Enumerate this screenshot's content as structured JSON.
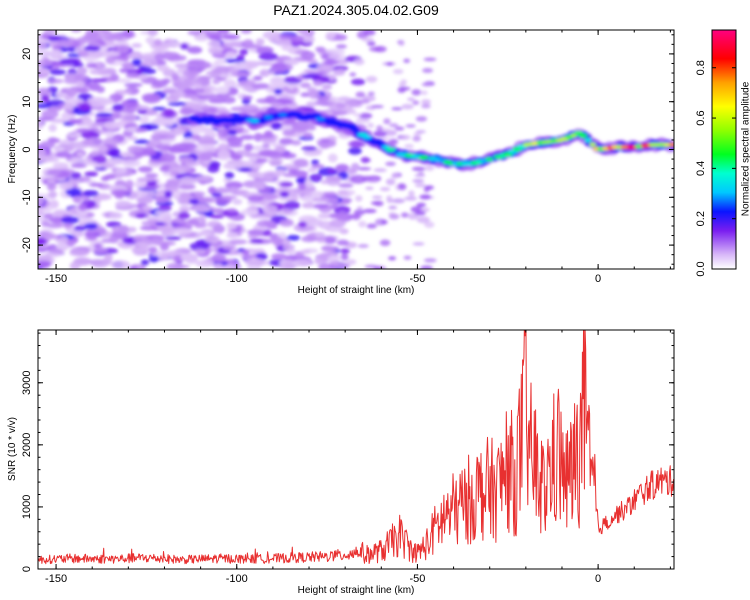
{
  "figure": {
    "title": "PAZ1.2024.305.04.02.G09"
  },
  "chart_data": [
    {
      "type": "heatmap",
      "title": "PAZ1.2024.305.04.02.G09",
      "xlabel": "Height of straight line (km)",
      "ylabel": "Frequency (Hz)",
      "xlim": [
        -155,
        21
      ],
      "ylim": [
        -25,
        25
      ],
      "xticks": [
        -150,
        -100,
        -50,
        0
      ],
      "yticks": [
        -20,
        -10,
        0,
        10,
        20
      ],
      "colorbar": {
        "label": "Normalized spectral amplitude",
        "range": [
          0,
          0.95
        ],
        "ticks": [
          0.0,
          0.2,
          0.4,
          0.6,
          0.8
        ],
        "tick_labels": [
          "0.0",
          "0.2",
          "0.4",
          "0.6",
          "0.8"
        ]
      },
      "ridge": {
        "description_series": "dominant frequency vs height",
        "x": [
          -112,
          -105,
          -100,
          -95,
          -90,
          -85,
          -80,
          -75,
          -70,
          -65,
          -60,
          -55,
          -50,
          -45,
          -40,
          -35,
          -30,
          -25,
          -20,
          -15,
          -10,
          -5,
          0,
          5,
          10,
          15,
          20
        ],
        "y": [
          6.5,
          6,
          6.5,
          6,
          7,
          7.5,
          7,
          6,
          5,
          3,
          1,
          -1,
          -1.5,
          -2,
          -3,
          -3,
          -2,
          -1,
          1,
          1.5,
          2,
          3.5,
          0,
          0.5,
          0.5,
          1,
          1
        ],
        "amplitude": [
          0.2,
          0.25,
          0.25,
          0.3,
          0.3,
          0.28,
          0.25,
          0.3,
          0.3,
          0.35,
          0.35,
          0.45,
          0.45,
          0.5,
          0.5,
          0.45,
          0.45,
          0.5,
          0.6,
          0.7,
          0.75,
          0.5,
          0.85,
          0.85,
          0.9,
          0.9,
          0.9
        ]
      }
    },
    {
      "type": "line",
      "title": "",
      "xlabel": "Height of straight line (km)",
      "ylabel": "SNR (10 * v/v)",
      "xlim": [
        -155,
        21
      ],
      "ylim": [
        0,
        3850
      ],
      "xticks": [
        -150,
        -100,
        -50,
        0
      ],
      "yticks": [
        0,
        1000,
        2000,
        3000
      ],
      "color": "#e83030",
      "series": [
        {
          "x": [
            -155,
            -145,
            -135,
            -125,
            -115,
            -105,
            -95,
            -85,
            -75,
            -70,
            -65,
            -60,
            -57,
            -55,
            -52,
            -50,
            -47,
            -45,
            -42,
            -40,
            -38,
            -35,
            -33,
            -30,
            -28,
            -25,
            -23,
            -21,
            -20,
            -19,
            -17,
            -15,
            -13,
            -11,
            -9,
            -7,
            -5,
            -4,
            -3,
            -2,
            -1,
            0,
            2,
            5,
            8,
            11,
            14,
            17,
            20
          ],
          "y": [
            150,
            170,
            160,
            180,
            150,
            170,
            160,
            180,
            200,
            230,
            300,
            400,
            600,
            750,
            450,
            350,
            600,
            900,
            1200,
            1300,
            1400,
            1600,
            1700,
            1800,
            1700,
            2300,
            2000,
            2900,
            3800,
            2600,
            2200,
            1700,
            2300,
            2600,
            1900,
            2200,
            2700,
            3700,
            2800,
            1800,
            1900,
            650,
            750,
            900,
            1000,
            1200,
            1350,
            1450,
            1450
          ]
        }
      ]
    }
  ]
}
